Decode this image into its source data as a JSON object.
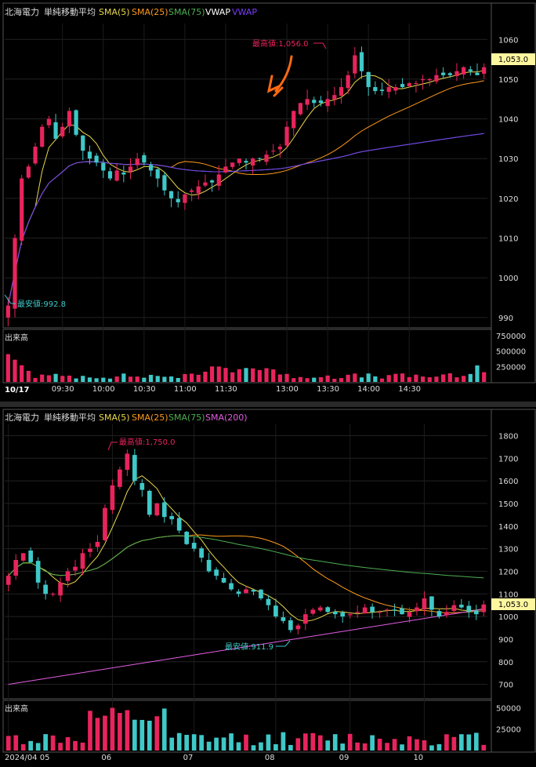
{
  "intraday": {
    "legend": {
      "name": "北海電力",
      "type": "単純移動平均",
      "items": [
        {
          "label": "SMA(5)",
          "color": "#e8d84a"
        },
        {
          "label": "SMA(25)",
          "color": "#ff9a1a"
        },
        {
          "label": "SMA(75)",
          "color": "#4caf50"
        },
        {
          "label": "VWAP",
          "color": "#ffffff"
        },
        {
          "label": "VWAP",
          "color": "#7a3cff"
        }
      ]
    },
    "price_tag": "1,053.0",
    "high_annotation": "最高値:1,056.0",
    "low_annotation": "最安値:992.8",
    "volume_label": "出来高",
    "date_label": "10/17",
    "x_ticks": [
      "09:30",
      "10:00",
      "10:30",
      "11:00",
      "11:30",
      "13:00",
      "13:30",
      "14:00",
      "14:30"
    ],
    "y_ticks": [
      "1060",
      "1050",
      "1040",
      "1030",
      "1020",
      "1010",
      "1000",
      "990"
    ],
    "vol_ticks": [
      "750000",
      "500000",
      "250000"
    ]
  },
  "daily": {
    "legend": {
      "name": "北海電力",
      "type": "単純移動平均",
      "items": [
        {
          "label": "SMA(5)",
          "color": "#e8d84a"
        },
        {
          "label": "SMA(25)",
          "color": "#ff9a1a"
        },
        {
          "label": "SMA(75)",
          "color": "#4caf50"
        },
        {
          "label": "SMA(200)",
          "color": "#e05ce0"
        }
      ]
    },
    "price_tag": "1,053.0",
    "high_annotation": "最高値:1,750.0",
    "low_annotation": "最安値:911.9",
    "volume_label": "出来高",
    "x_ticks": [
      "2024/04 05",
      "06",
      "07",
      "08",
      "09",
      "10"
    ],
    "y_ticks": [
      "1800",
      "1700",
      "1600",
      "1500",
      "1400",
      "1300",
      "1200",
      "1100",
      "1000",
      "900",
      "800",
      "700"
    ],
    "vol_ticks": [
      "50000",
      "25000"
    ]
  },
  "chart_data": [
    {
      "type": "candlestick",
      "title": "北海電力",
      "timeframe": "intraday 10/17",
      "ylim": [
        988,
        1064
      ],
      "up_color": "#e8245c",
      "down_color": "#3fc8c8",
      "candles_close_approx": [
        993,
        1010,
        1025,
        1028,
        1033,
        1038,
        1040,
        1035,
        1038,
        1042,
        1036,
        1032,
        1030,
        1029,
        1027,
        1025,
        1027,
        1026,
        1028,
        1030,
        1029,
        1027,
        1025,
        1022,
        1020,
        1019,
        1021,
        1022,
        1023,
        1024,
        1024,
        1026,
        1028,
        1029,
        1030,
        1029,
        1030,
        1030,
        1031,
        1032,
        1033,
        1038,
        1042,
        1044,
        1045,
        1044,
        1044,
        1045,
        1046,
        1048,
        1051,
        1056,
        1052,
        1048,
        1047,
        1047,
        1048,
        1048,
        1048,
        1049,
        1049,
        1050,
        1050,
        1051,
        1051,
        1051,
        1052,
        1053,
        1052,
        1051,
        1053
      ],
      "annotations": [
        {
          "label": "最高値:1,056.0",
          "value": 1056.0
        },
        {
          "label": "最安値:992.8",
          "value": 992.8
        }
      ],
      "volume_ylim": [
        0,
        800000
      ],
      "volume_ticks": [
        250000,
        500000,
        750000
      ],
      "last_price": 1053.0
    },
    {
      "type": "candlestick",
      "title": "北海電力",
      "timeframe": "daily",
      "ylim": [
        650,
        1850
      ],
      "up_color": "#e8245c",
      "down_color": "#3fc8c8",
      "x_ticks": [
        "2024/04 05",
        "06",
        "07",
        "08",
        "09",
        "10"
      ],
      "candles_close_approx": [
        1180,
        1250,
        1280,
        1240,
        1150,
        1100,
        1100,
        1150,
        1200,
        1220,
        1280,
        1300,
        1330,
        1480,
        1580,
        1650,
        1720,
        1600,
        1560,
        1450,
        1500,
        1440,
        1430,
        1380,
        1320,
        1300,
        1260,
        1200,
        1180,
        1150,
        1120,
        1100,
        1120,
        1110,
        1080,
        1050,
        1000,
        980,
        940,
        960,
        1010,
        1030,
        1040,
        1020,
        1010,
        1000,
        1010,
        1020,
        1040,
        1020,
        1020,
        1030,
        1030,
        1010,
        1020,
        1040,
        1080,
        1030,
        1000,
        1020,
        1050,
        1040,
        1020,
        1010,
        1053
      ],
      "annotations": [
        {
          "label": "最高値:1,750.0",
          "value": 1750.0
        },
        {
          "label": "最安値:911.9",
          "value": 911.9
        }
      ],
      "volume_ylim": [
        0,
        55000
      ],
      "volume_ticks": [
        25000,
        50000
      ],
      "last_price": 1053.0
    }
  ]
}
